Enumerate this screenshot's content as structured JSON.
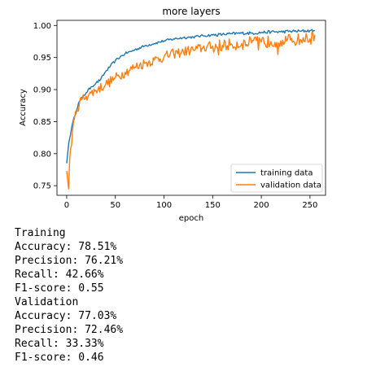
{
  "chart_data": {
    "type": "line",
    "title": "more layers",
    "xlabel": "epoch",
    "ylabel": "Accuracy",
    "xlim": [
      -10,
      266
    ],
    "ylim": [
      0.735,
      1.008
    ],
    "xticks": [
      0,
      50,
      100,
      150,
      200,
      250
    ],
    "yticks": [
      0.75,
      0.8,
      0.85,
      0.9,
      0.95,
      1.0
    ],
    "xtick_labels": [
      "0",
      "50",
      "100",
      "150",
      "200",
      "250"
    ],
    "ytick_labels": [
      "0.75",
      "0.80",
      "0.85",
      "0.90",
      "0.95",
      "1.00"
    ],
    "grid": false,
    "legend_position": "lower-right",
    "x_end": 255,
    "series": [
      {
        "name": "training data",
        "color": "#1f77b4",
        "x": [
          0,
          2,
          5,
          8,
          12,
          16,
          20,
          25,
          30,
          35,
          40,
          45,
          50,
          55,
          60,
          70,
          80,
          90,
          100,
          110,
          120,
          130,
          140,
          150,
          160,
          170,
          180,
          190,
          200,
          210,
          220,
          230,
          240,
          250,
          255
        ],
        "values": [
          0.785,
          0.815,
          0.84,
          0.858,
          0.878,
          0.888,
          0.895,
          0.904,
          0.91,
          0.916,
          0.928,
          0.937,
          0.945,
          0.951,
          0.956,
          0.962,
          0.968,
          0.972,
          0.976,
          0.979,
          0.981,
          0.982,
          0.984,
          0.985,
          0.986,
          0.987,
          0.988,
          0.988,
          0.989,
          0.99,
          0.99,
          0.991,
          0.991,
          0.992,
          0.992
        ],
        "jitter": 0.002
      },
      {
        "name": "validation data",
        "color": "#ff7f0e",
        "x": [
          0,
          2,
          3,
          6,
          10,
          15,
          20,
          25,
          30,
          40,
          50,
          60,
          70,
          80,
          90,
          100,
          110,
          120,
          130,
          140,
          150,
          160,
          170,
          180,
          190,
          200,
          210,
          220,
          230,
          240,
          250,
          255
        ],
        "values": [
          0.773,
          0.745,
          0.79,
          0.835,
          0.868,
          0.884,
          0.89,
          0.894,
          0.899,
          0.908,
          0.918,
          0.927,
          0.935,
          0.941,
          0.946,
          0.951,
          0.956,
          0.959,
          0.962,
          0.965,
          0.968,
          0.969,
          0.97,
          0.972,
          0.973,
          0.974,
          0.975,
          0.976,
          0.977,
          0.978,
          0.979,
          0.985
        ],
        "jitter": 0.008
      }
    ]
  },
  "metrics": {
    "training": {
      "heading": "Training",
      "accuracy": "Accuracy: 78.51%",
      "precision": "Precision: 76.21%",
      "recall": "Recall: 42.66%",
      "f1": "F1-score: 0.55"
    },
    "validation": {
      "heading": "Validation",
      "accuracy": "Accuracy: 77.03%",
      "precision": "Precision: 72.46%",
      "recall": "Recall: 33.33%",
      "f1": "F1-score: 0.46"
    }
  }
}
